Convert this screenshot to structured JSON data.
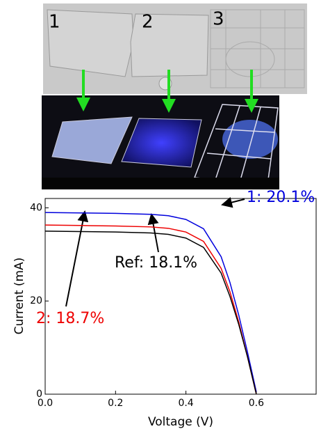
{
  "photo": {
    "labels": [
      "1",
      "2",
      "3"
    ]
  },
  "chart_data": {
    "type": "line",
    "x_label": "Voltage (V)",
    "y_label": "Current (mA)",
    "x": [
      0,
      0.1,
      0.2,
      0.3,
      0.35,
      0.4,
      0.45,
      0.5,
      0.525,
      0.55,
      0.575,
      0.6
    ],
    "series": [
      {
        "name": "1: 20.1%",
        "color": "#0000dd",
        "values": [
          39,
          38.9,
          38.8,
          38.6,
          38.3,
          37.5,
          35.5,
          29.5,
          24,
          17,
          9,
          0.5
        ]
      },
      {
        "name": "2: 18.7%",
        "color": "#ee0000",
        "values": [
          36.3,
          36.2,
          36.1,
          35.9,
          35.6,
          34.8,
          32.8,
          27,
          22,
          15.5,
          8,
          0
        ]
      },
      {
        "name": "Ref: 18.1%",
        "color": "#000000",
        "values": [
          35,
          34.9,
          34.8,
          34.6,
          34.3,
          33.5,
          31.5,
          26,
          21,
          15,
          8,
          0
        ]
      }
    ],
    "xlim": [
      0,
      0.77
    ],
    "ylim": [
      0,
      42
    ],
    "xticks": [
      {
        "value": 0,
        "label": "0.0"
      },
      0.2,
      0.4,
      0.6
    ],
    "yticks": [
      0,
      20,
      40
    ],
    "grid": false
  }
}
